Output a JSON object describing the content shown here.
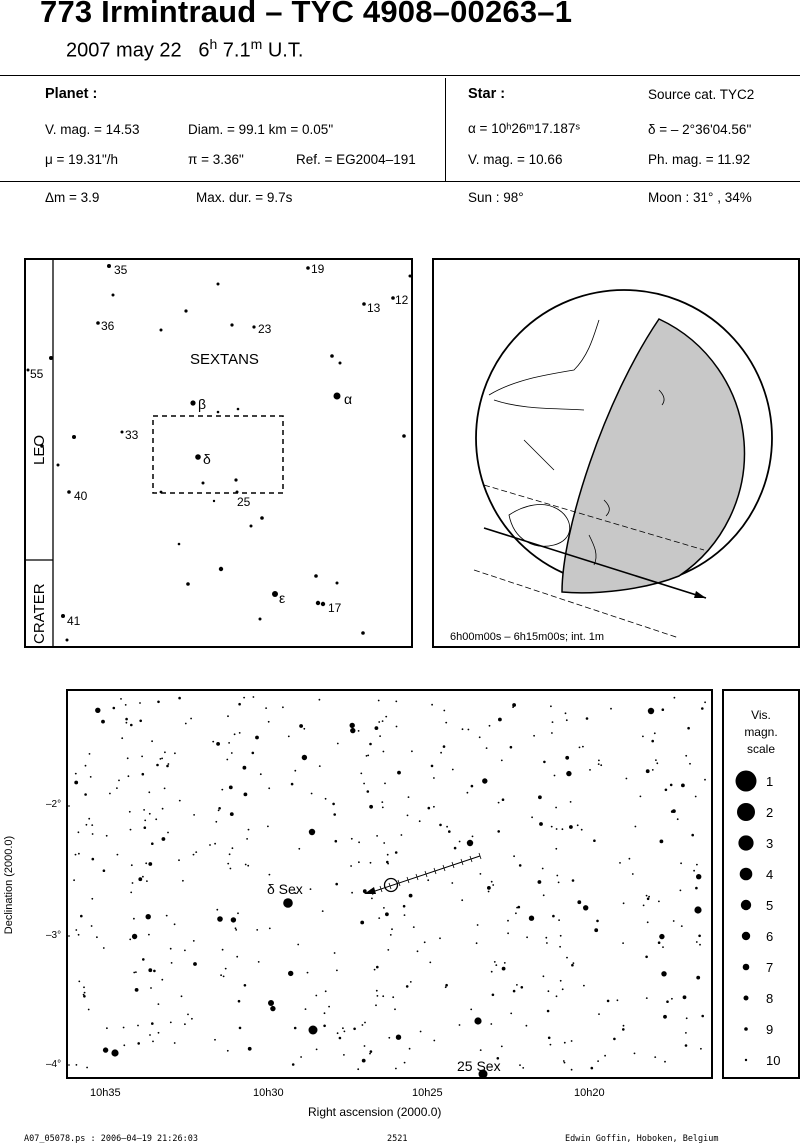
{
  "header": {
    "title": "773 Irmintraud  –  TYC 4908–00263–1",
    "date": "2007 may 22",
    "time_hours": "6",
    "time_h_sup": "h",
    "time_minutes": "7.1",
    "time_m_sup": "m",
    "time_suffix": "U.T."
  },
  "planet": {
    "heading": "Planet :",
    "vmag": "V. mag. = 14.53",
    "diam": "Diam. = 99.1 km = 0.05\"",
    "mu": "μ =  19.31\"/h",
    "pi": "π =  3.36\"",
    "ref": "Ref. = EG2004–191"
  },
  "star": {
    "heading": "Star :",
    "source": "Source cat.  TYC2",
    "alpha": "α = 10ʰ26ᵐ17.187ˢ",
    "delta": "δ = – 2°36'04.56\"",
    "vmag": "V. mag. = 10.66",
    "phmag": "Ph. mag. = 11.92"
  },
  "event": {
    "dm": "Δm = 3.9",
    "maxdur": "Max. dur. = 9.7s",
    "sun": "Sun :  98°",
    "moon": "Moon :  31° , 34%"
  },
  "finder": {
    "constellation": "SEXTANS",
    "side_labels": [
      "LEO",
      "CRATER"
    ],
    "star_labels": [
      "35",
      "19",
      "13",
      "12",
      "36",
      "23",
      "55",
      "β",
      "α",
      "33",
      "δ",
      "40",
      "25",
      "ε",
      "17",
      "41"
    ]
  },
  "globe": {
    "caption": "6h00m00s –  6h15m00s; int.  1m"
  },
  "chart": {
    "ylabel": "Declination (2000.0)",
    "xlabel": "Right ascension (2000.0)",
    "yticks": [
      "–2°",
      "–3°",
      "–4°"
    ],
    "xticks": [
      "10h35",
      "10h30",
      "10h25",
      "10h20"
    ],
    "labels": [
      "δ Sex",
      "25 Sex"
    ]
  },
  "magscale": {
    "title": [
      "Vis.",
      "magn.",
      "scale"
    ],
    "steps": [
      "1",
      "2",
      "3",
      "4",
      "5",
      "6",
      "7",
      "8",
      "9",
      "10"
    ]
  },
  "footer": {
    "file": "A07_05078.ps : 2006–04–19 21:26:03",
    "number": "2521",
    "author": "Edwin Goffin, Hoboken, Belgium"
  }
}
